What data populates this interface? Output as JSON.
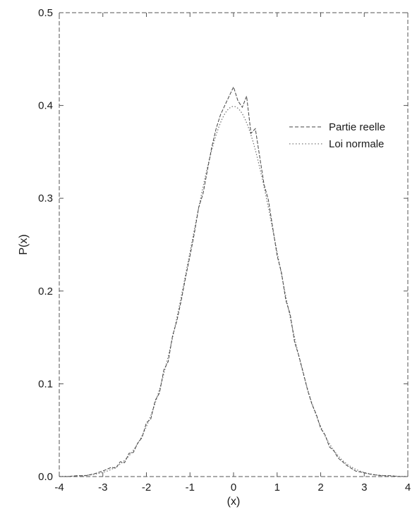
{
  "chart_data": {
    "type": "line",
    "xlabel": "(x)",
    "ylabel": "P(x)",
    "xlim": [
      -4,
      4
    ],
    "ylim": [
      0,
      0.5
    ],
    "x_ticks": [
      "-4",
      "-3",
      "-2",
      "-1",
      "0",
      "1",
      "2",
      "3",
      "4"
    ],
    "y_ticks": [
      "0.0",
      "0.1",
      "0.2",
      "0.3",
      "0.4",
      "0.5"
    ],
    "grid": false,
    "legend_position": "top-right",
    "series": [
      {
        "name": "Partie reelle",
        "style": "dashed",
        "color": "#444444",
        "x": [
          -4.0,
          -3.8,
          -3.6,
          -3.4,
          -3.2,
          -3.0,
          -2.9,
          -2.8,
          -2.7,
          -2.6,
          -2.5,
          -2.4,
          -2.3,
          -2.2,
          -2.1,
          -2.0,
          -1.9,
          -1.8,
          -1.7,
          -1.6,
          -1.5,
          -1.4,
          -1.3,
          -1.2,
          -1.1,
          -1.0,
          -0.9,
          -0.8,
          -0.7,
          -0.6,
          -0.5,
          -0.4,
          -0.3,
          -0.2,
          -0.1,
          0.0,
          0.1,
          0.2,
          0.3,
          0.4,
          0.5,
          0.6,
          0.7,
          0.8,
          0.9,
          1.0,
          1.1,
          1.2,
          1.3,
          1.4,
          1.5,
          1.6,
          1.7,
          1.8,
          1.9,
          2.0,
          2.1,
          2.2,
          2.3,
          2.4,
          2.5,
          2.6,
          2.7,
          2.8,
          2.9,
          3.0,
          3.2,
          3.4,
          3.6,
          3.8,
          4.0
        ],
        "y": [
          0.0,
          0.0,
          0.001,
          0.001,
          0.003,
          0.006,
          0.008,
          0.01,
          0.009,
          0.016,
          0.015,
          0.025,
          0.026,
          0.036,
          0.042,
          0.058,
          0.062,
          0.082,
          0.09,
          0.115,
          0.124,
          0.152,
          0.168,
          0.19,
          0.215,
          0.238,
          0.262,
          0.29,
          0.305,
          0.33,
          0.355,
          0.375,
          0.39,
          0.4,
          0.41,
          0.42,
          0.405,
          0.398,
          0.41,
          0.37,
          0.375,
          0.345,
          0.315,
          0.298,
          0.268,
          0.238,
          0.22,
          0.19,
          0.175,
          0.145,
          0.13,
          0.112,
          0.093,
          0.078,
          0.067,
          0.052,
          0.045,
          0.032,
          0.028,
          0.02,
          0.016,
          0.012,
          0.009,
          0.006,
          0.005,
          0.004,
          0.002,
          0.001,
          0.001,
          0.0,
          0.0
        ]
      },
      {
        "name": "Loi normale",
        "style": "dotted",
        "color": "#777777",
        "mean": 0,
        "std": 1
      }
    ]
  }
}
